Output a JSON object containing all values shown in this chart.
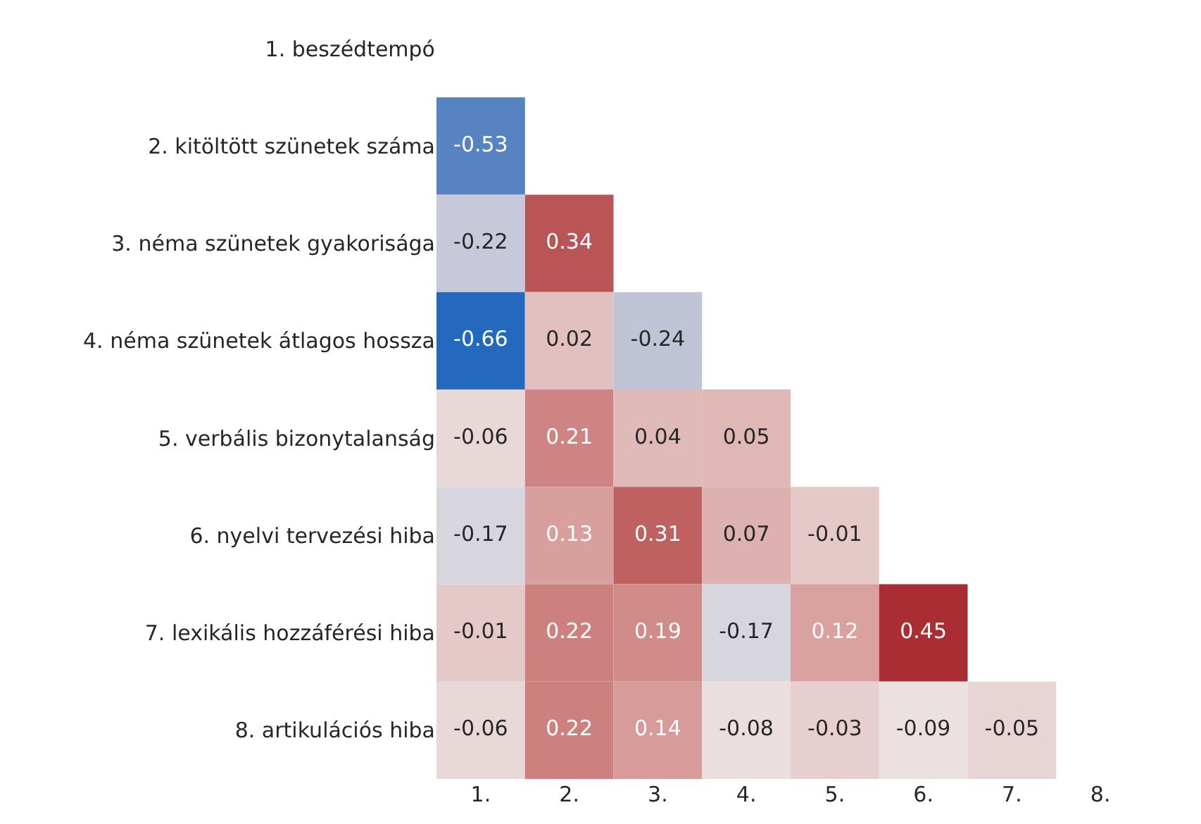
{
  "chart_data": {
    "type": "heatmap",
    "categories": [
      "1.",
      "2.",
      "3.",
      "4.",
      "5.",
      "6.",
      "7.",
      "8."
    ],
    "y_categories": [
      "1. beszédtempó",
      "2. kitöltött szünetek száma",
      "3. néma szünetek gyakorisága",
      "4. néma szünetek átlagos hossza",
      "5. verbális bizonytalanság",
      "6. nyelvi tervezési hiba",
      "7. lexikális hozzáférési hiba",
      "8. artikulációs hiba"
    ],
    "cells": [
      [
        null,
        null,
        null,
        null,
        null,
        null,
        null,
        null
      ],
      [
        -0.53,
        null,
        null,
        null,
        null,
        null,
        null,
        null
      ],
      [
        -0.22,
        0.34,
        null,
        null,
        null,
        null,
        null,
        null
      ],
      [
        -0.66,
        0.02,
        -0.24,
        null,
        null,
        null,
        null,
        null
      ],
      [
        -0.06,
        0.21,
        0.04,
        0.05,
        null,
        null,
        null,
        null
      ],
      [
        -0.17,
        0.13,
        0.31,
        0.07,
        -0.01,
        null,
        null,
        null
      ],
      [
        -0.01,
        0.22,
        0.19,
        -0.17,
        0.12,
        0.45,
        null,
        null
      ],
      [
        -0.06,
        0.22,
        0.14,
        -0.08,
        -0.03,
        -0.09,
        -0.05,
        null
      ]
    ],
    "data_labels": true
  }
}
